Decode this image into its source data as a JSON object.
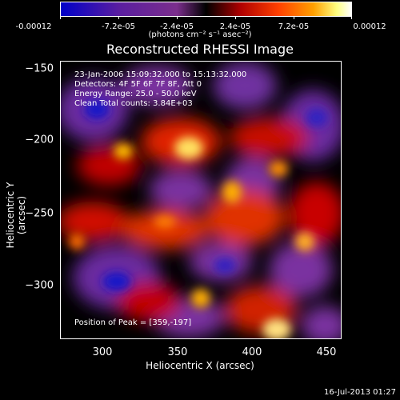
{
  "colorbar": {
    "ticks": [
      "-0.00012",
      "-7.2e-05",
      "-2.4e-05",
      "2.4e-05",
      "7.2e-05",
      "0.00012"
    ],
    "units": "(photons cm⁻² s⁻¹ asec⁻²)",
    "colors": [
      "#0000c8",
      "#5a1ea0",
      "#7b2e8c",
      "#000000",
      "#b00000",
      "#ff4000",
      "#ffa000",
      "#ffff80",
      "#ffffff"
    ]
  },
  "title": "Reconstructed RHESSI Image",
  "info": {
    "time": "23-Jan-2006 15:09:32.000 to 15:13:32.000",
    "detectors": "Detectors: 4F 5F 6F 7F 8F, Att 0",
    "energy": "Energy Range: 25.0 - 50.0 keV",
    "method": "Clean     Total counts: 3.84E+03",
    "peak": "Position of Peak = [359,-197]"
  },
  "axes": {
    "xlabel": "Heliocentric X (arcsec)",
    "ylabel": "Heliocentric Y (arcsec)",
    "xticks": [
      "300",
      "350",
      "400",
      "450"
    ],
    "yticks": [
      "−150",
      "−200",
      "−250",
      "−300"
    ]
  },
  "footer": "16-Jul-2013 01:27"
}
